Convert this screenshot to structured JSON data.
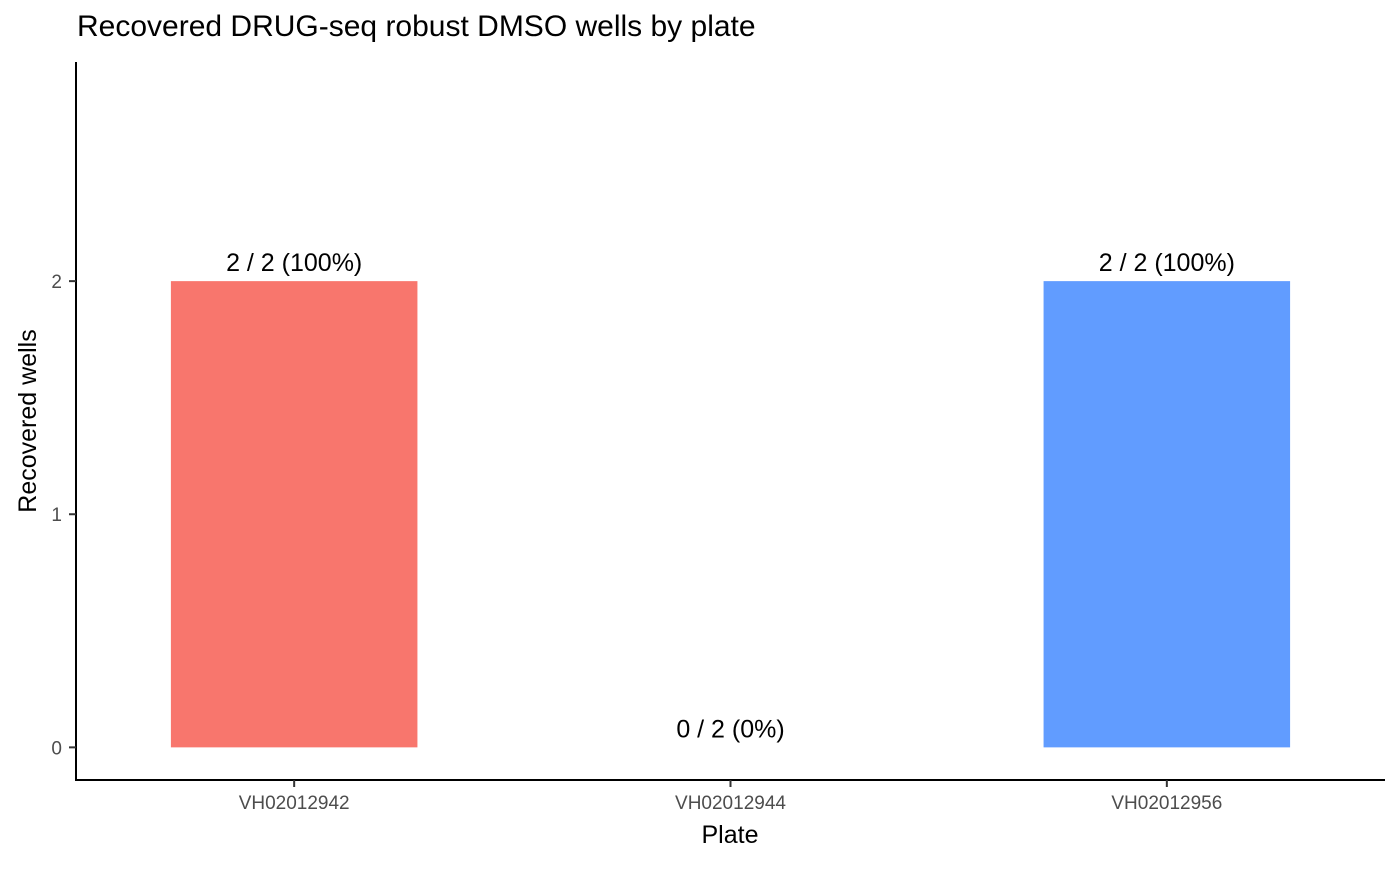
{
  "chart_data": {
    "type": "bar",
    "title": "Recovered DRUG-seq robust DMSO wells by plate",
    "xlabel": "Plate",
    "ylabel": "Recovered wells",
    "categories": [
      "VH02012942",
      "VH02012944",
      "VH02012956"
    ],
    "values": [
      2,
      0,
      2
    ],
    "bar_labels": [
      "2 / 2 (100%)",
      "0 / 2 (0%)",
      "2 / 2 (100%)"
    ],
    "colors": [
      "#F8766D",
      "#00BA38",
      "#619CFF"
    ],
    "yticks": [
      0,
      1,
      2
    ],
    "ylim": [
      -0.14,
      2.94
    ],
    "grid": false,
    "legend": "none"
  }
}
